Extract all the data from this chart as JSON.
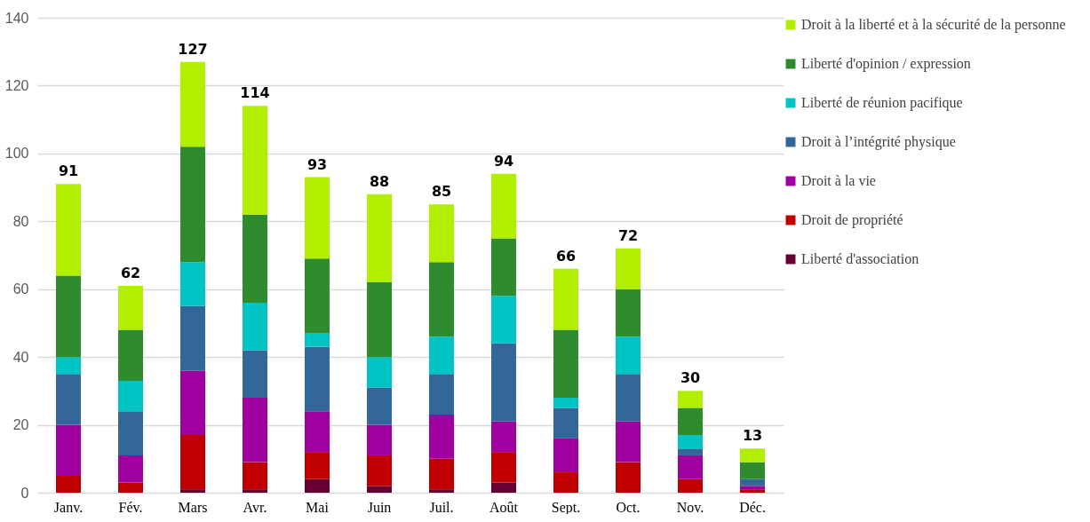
{
  "chart_data": {
    "type": "bar",
    "stacked": true,
    "categories": [
      "Janv.",
      "Fév.",
      "Mars",
      "Avr.",
      "Mai",
      "Juin",
      "Juil.",
      "Août",
      "Sept.",
      "Oct.",
      "Nov.",
      "Déc."
    ],
    "series": [
      {
        "name": "Liberté d'association",
        "color": "#660033",
        "values": [
          0,
          0,
          1,
          1,
          4,
          2,
          1,
          3,
          0,
          0,
          0,
          0
        ]
      },
      {
        "name": "Droit de propriété",
        "color": "#c00000",
        "values": [
          5,
          3,
          16,
          8,
          8,
          9,
          9,
          9,
          6,
          9,
          4,
          1
        ]
      },
      {
        "name": "Droit à la vie",
        "color": "#a000a0",
        "values": [
          15,
          8,
          19,
          19,
          12,
          9,
          13,
          9,
          10,
          12,
          7,
          1
        ]
      },
      {
        "name": "Droit à l’intégrité  physique",
        "color": "#336699",
        "values": [
          15,
          13,
          19,
          14,
          19,
          11,
          12,
          23,
          9,
          14,
          2,
          2
        ]
      },
      {
        "name": "Liberté de réunion pacifique",
        "color": "#00c4c4",
        "values": [
          5,
          9,
          13,
          14,
          4,
          9,
          11,
          14,
          3,
          11,
          4,
          0
        ]
      },
      {
        "name": "Liberté d'opinion / expression",
        "color": "#2e8b2e",
        "values": [
          24,
          15,
          34,
          26,
          22,
          22,
          22,
          17,
          20,
          14,
          8,
          5
        ]
      },
      {
        "name": "Droit  à la liberté et à la sécurité de la personne",
        "color": "#b2ee00",
        "values": [
          27,
          13,
          25,
          32,
          24,
          26,
          17,
          19,
          18,
          12,
          5,
          4
        ]
      }
    ],
    "totals": [
      "91",
      "62",
      "127",
      "114",
      "93",
      "88",
      "85",
      "94",
      "66",
      "72",
      "30",
      "13"
    ],
    "ylim": [
      0,
      140
    ],
    "yticks": [
      0,
      20,
      40,
      60,
      80,
      100,
      120,
      140
    ],
    "grid": "y",
    "legend": "top right"
  }
}
